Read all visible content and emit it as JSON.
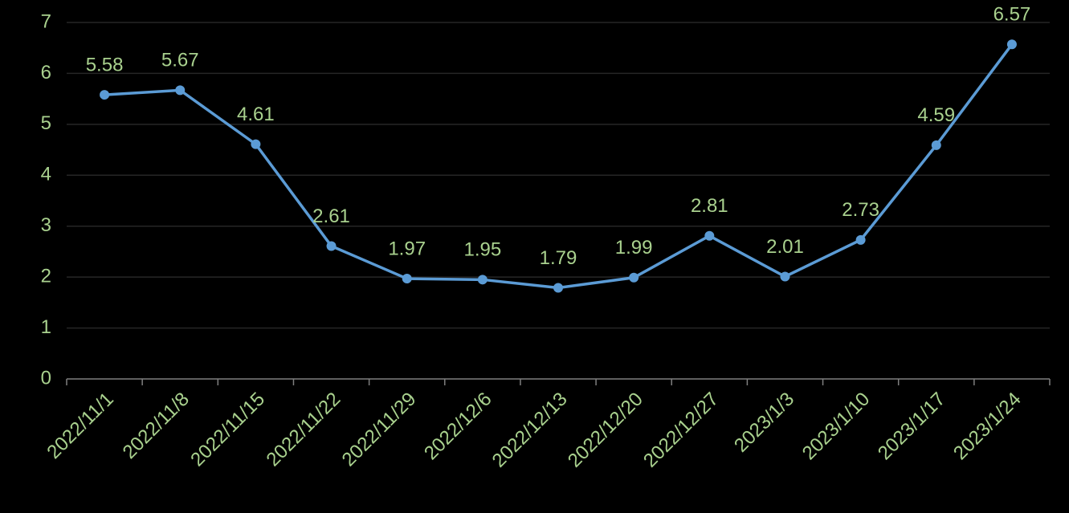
{
  "chart_data": {
    "type": "line",
    "categories": [
      "2022/11/1",
      "2022/11/8",
      "2022/11/15",
      "2022/11/22",
      "2022/11/29",
      "2022/12/6",
      "2022/12/13",
      "2022/12/20",
      "2022/12/27",
      "2023/1/3",
      "2023/1/10",
      "2023/1/17",
      "2023/1/24"
    ],
    "series": [
      {
        "color": "#5b9bd5",
        "values": [
          5.58,
          5.67,
          4.61,
          2.61,
          1.97,
          1.95,
          1.79,
          1.99,
          2.81,
          2.01,
          2.73,
          4.59,
          6.57
        ]
      }
    ],
    "ylim": [
      0,
      7
    ],
    "yticks": [
      0,
      1,
      2,
      3,
      4,
      5,
      6,
      7
    ],
    "grid": true,
    "data_labels": true
  }
}
